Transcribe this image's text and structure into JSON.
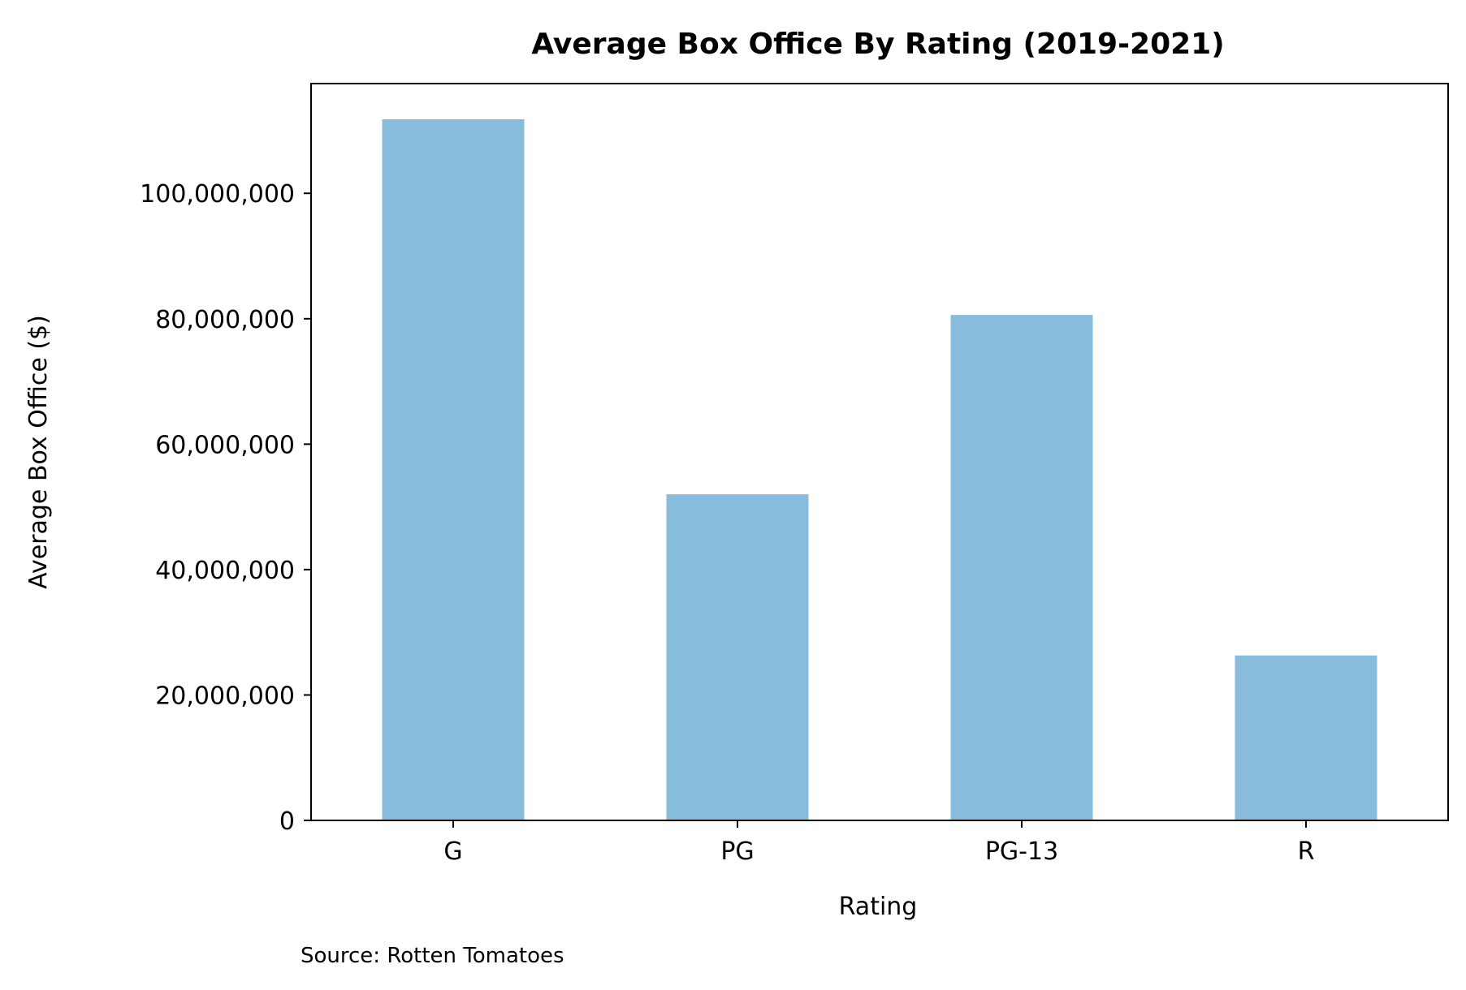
{
  "chart_data": {
    "type": "bar",
    "title": "Average Box Office By Rating (2019-2021)",
    "xlabel": "Rating",
    "ylabel": "Average Box Office ($)",
    "categories": [
      "G",
      "PG",
      "PG-13",
      "R"
    ],
    "values": [
      111800000,
      52000000,
      80600000,
      26300000
    ],
    "ylim": [
      0,
      117500000
    ],
    "yticks": [
      0,
      20000000,
      40000000,
      60000000,
      80000000,
      100000000
    ],
    "ytick_labels": [
      "0",
      "20,000,000",
      "40,000,000",
      "60,000,000",
      "80,000,000",
      "100,000,000"
    ],
    "bar_color": "#87bcdd",
    "grid": false,
    "legend": "none"
  },
  "source_note": "Source: Rotten Tomatoes"
}
